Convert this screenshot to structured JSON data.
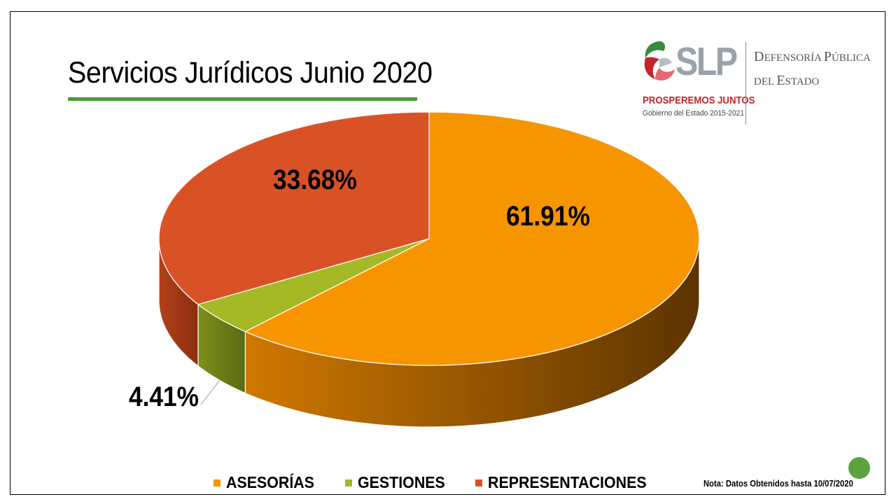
{
  "chart_data": {
    "type": "pie",
    "title": "Servicios Jurídicos Junio 2020",
    "labels": [
      "ASESORÍAS",
      "GESTIONES",
      "REPRESENTACIONES"
    ],
    "values": [
      61.91,
      4.41,
      33.68
    ],
    "data_labels": [
      "61.91%",
      "4.41%",
      "33.68%"
    ],
    "colors": [
      "#f79500",
      "#a5b825",
      "#d95226"
    ],
    "style": "3d",
    "legend": "bottom"
  },
  "logo": {
    "mark": "SLP",
    "tagline": "PROSPEREMOS JUNTOS",
    "period": "Gobierno del Estado 2015-2021",
    "org_line1_a": "D",
    "org_line1_b": "efensoría ",
    "org_line1_c": "P",
    "org_line1_d": "ública",
    "org_line2_a": "del ",
    "org_line2_b": "E",
    "org_line2_c": "stado"
  },
  "note": "Nota: Datos Obtenidos hasta 10/07/2020",
  "colors": {
    "accent_green": "#4c9a3a",
    "brand_red": "#c4232b"
  }
}
